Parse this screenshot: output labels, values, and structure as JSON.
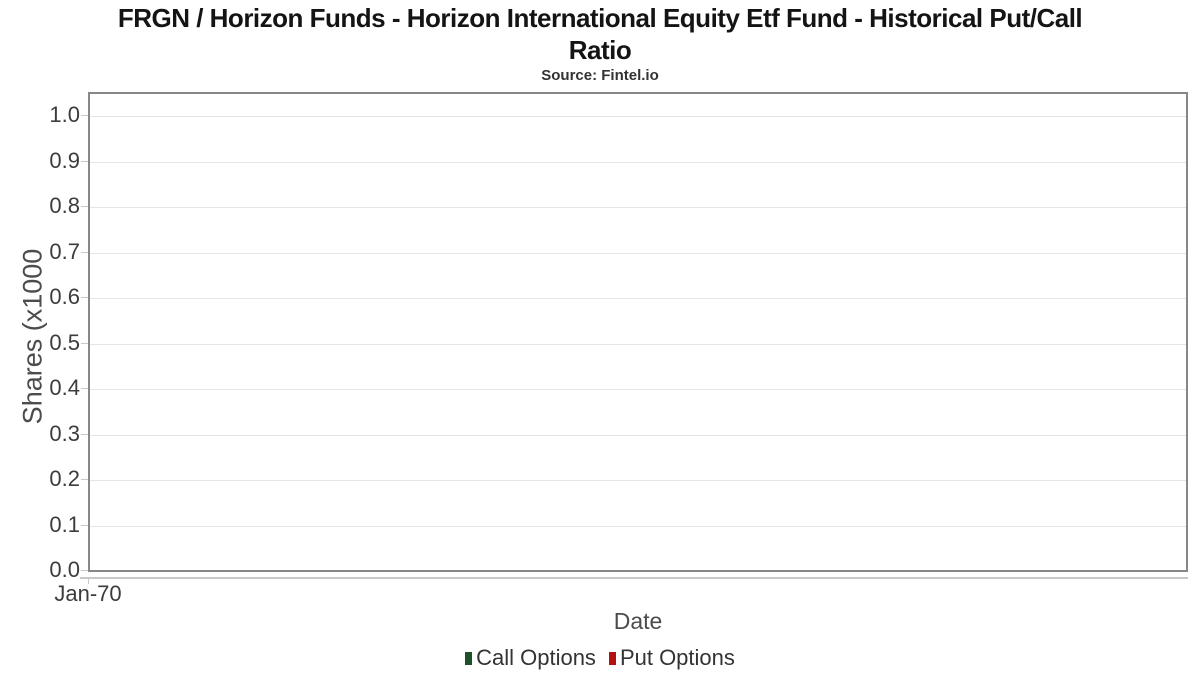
{
  "chart_data": {
    "type": "line",
    "title": "FRGN / Horizon Funds - Horizon International Equity Etf Fund - Historical Put/Call\nRatio",
    "subtitle": "Source: Fintel.io",
    "xlabel": "Date",
    "ylabel": "Shares (x1000",
    "x_ticks": [
      "Jan-70"
    ],
    "y_ticks": [
      "0.0",
      "0.1",
      "0.2",
      "0.3",
      "0.4",
      "0.5",
      "0.6",
      "0.7",
      "0.8",
      "0.9",
      "1.0"
    ],
    "ylim": [
      0.0,
      1.05
    ],
    "grid": true,
    "legend_position": "bottom",
    "series": [
      {
        "name": "Call Options",
        "color": "#1d5229",
        "x": [],
        "values": []
      },
      {
        "name": "Put Options",
        "color": "#b31212",
        "x": [],
        "values": []
      }
    ]
  },
  "colors": {
    "plot_border": "#878787",
    "gridline": "#e5e5e5",
    "axis_line": "#c8c8c8",
    "tick_text": "#3c3c3c",
    "axis_title_text": "#4c4c4c",
    "title_text": "#141414",
    "subtitle_text": "#333333",
    "legend_text": "#333333",
    "background": "#ffffff"
  }
}
